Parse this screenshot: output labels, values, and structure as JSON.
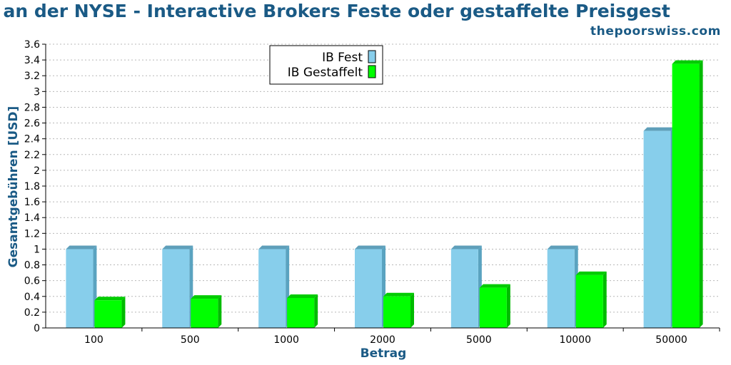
{
  "header": {
    "title": "n an der NYSE - Interactive Brokers Feste oder gestaffelte Preisgest",
    "site": "thepoorswiss.com"
  },
  "chart_data": {
    "type": "bar",
    "title": "n an der NYSE - Interactive Brokers Feste oder gestaffelte Preisgest",
    "xlabel": "Betrag",
    "ylabel": "Gesamtgebühren [USD]",
    "categories": [
      "100",
      "500",
      "1000",
      "2000",
      "5000",
      "10000",
      "50000"
    ],
    "series": [
      {
        "name": "IB Fest",
        "values": [
          1.0,
          1.0,
          1.0,
          1.0,
          1.0,
          1.0,
          2.5
        ],
        "color": "#87ceeb",
        "side": "#5aa3c0",
        "top": "#5f9fba"
      },
      {
        "name": "IB Gestaffelt",
        "values": [
          0.35,
          0.37,
          0.38,
          0.4,
          0.51,
          0.67,
          3.35
        ],
        "color": "#00ff00",
        "side": "#00bb00",
        "top": "#00cc00"
      }
    ],
    "ylim": [
      0,
      3.6
    ],
    "yticks": [
      "0",
      "0.2",
      "0.4",
      "0.6",
      "0.8",
      "1",
      "1.2",
      "1.4",
      "1.6",
      "1.8",
      "2",
      "2.2",
      "2.4",
      "2.6",
      "2.8",
      "3",
      "3.2",
      "3.4",
      "3.6"
    ],
    "grid": true,
    "legend_position": "top-center"
  }
}
